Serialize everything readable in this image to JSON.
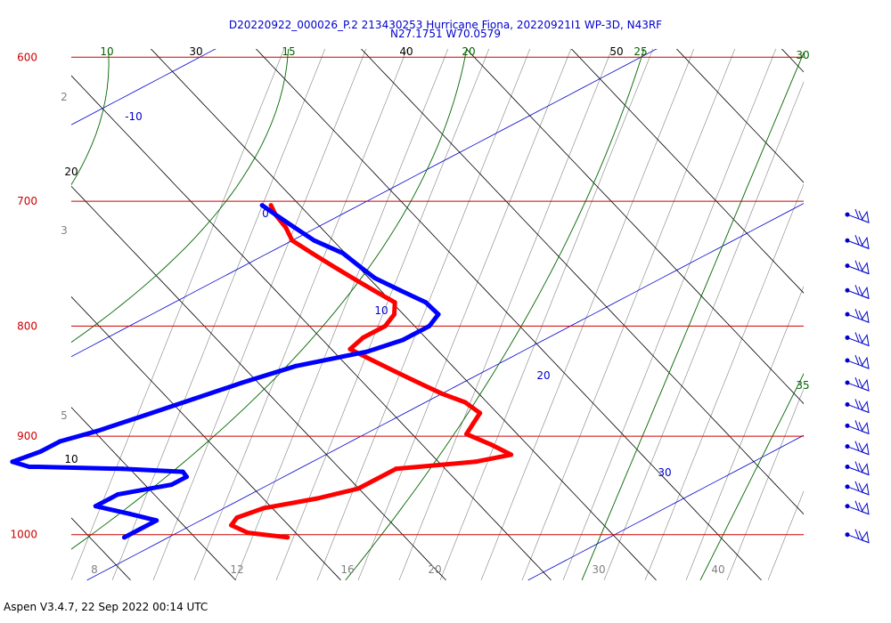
{
  "title_line1": "D20220922_000026_P.2 213430253 Hurricane Fiona, 20220921I1 WP-3D, N43RF",
  "title_line2": "N27.1751 W70.0579",
  "footer": "Aspen V3.4.7, 22 Sep 2022  00:14 UTC",
  "colors": {
    "isobar": "#cc0000",
    "isotherm": "#0000cc",
    "dry_adiabat": "#000000",
    "moist_adiabat": "#006600",
    "mixing_ratio": "#808080",
    "temperature": "#ff0000",
    "dewpoint": "#0000ff",
    "wind": "#0000cc"
  },
  "chart_data": {
    "type": "skew-t log-p",
    "pressure_range_hPa": [
      1050,
      600
    ],
    "isobars_hPa": [
      600,
      700,
      800,
      900,
      1000
    ],
    "isobar_labels": [
      "600",
      "700",
      "800",
      "900",
      "1000"
    ],
    "isotherms_C": [
      -10,
      0,
      10,
      20,
      30
    ],
    "isotherm_labels": [
      "-10",
      "0",
      "10",
      "20",
      "30"
    ],
    "dry_adiabat_labels": [
      "30",
      "40",
      "50",
      "20",
      "10"
    ],
    "moist_adiabat_labels": [
      "10",
      "15",
      "20",
      "25",
      "30",
      "35"
    ],
    "mixing_ratio_labels": [
      "2",
      "3",
      "5",
      "8",
      "12",
      "16",
      "20",
      "30",
      "40"
    ],
    "series": [
      {
        "name": "temperature",
        "points": [
          [
            1003,
            22.7
          ],
          [
            998,
            21.6
          ],
          [
            990,
            20.9
          ],
          [
            982,
            20.7
          ],
          [
            972,
            20.9
          ],
          [
            962,
            21.7
          ],
          [
            952,
            22.2
          ],
          [
            942,
            22.2
          ],
          [
            932,
            22.2
          ],
          [
            925,
            23.7
          ],
          [
            918,
            24.2
          ],
          [
            908,
            23.3
          ],
          [
            898,
            22.3
          ],
          [
            888,
            22.0
          ],
          [
            878,
            21.7
          ],
          [
            868,
            20.9
          ],
          [
            860,
            20.0
          ],
          [
            850,
            19.0
          ],
          [
            840,
            18.0
          ],
          [
            830,
            17.0
          ],
          [
            820,
            16.0
          ],
          [
            810,
            15.8
          ],
          [
            800,
            15.8
          ],
          [
            790,
            15.5
          ],
          [
            780,
            15.0
          ],
          [
            770,
            14.0
          ],
          [
            760,
            13.0
          ],
          [
            750,
            12.0
          ],
          [
            740,
            11.0
          ],
          [
            730,
            10.0
          ],
          [
            720,
            9.3
          ],
          [
            710,
            8.5
          ],
          [
            703,
            8.0
          ]
        ]
      },
      {
        "name": "dewpoint",
        "points": [
          [
            1003,
            19.0
          ],
          [
            995,
            19.0
          ],
          [
            985,
            19.0
          ],
          [
            978,
            18.1
          ],
          [
            970,
            17.0
          ],
          [
            958,
            17.0
          ],
          [
            948,
            17.8
          ],
          [
            940,
            17.8
          ],
          [
            935,
            17.5
          ],
          [
            932,
            16.0
          ],
          [
            930,
            14.0
          ],
          [
            930,
            13.8
          ],
          [
            925,
            13.2
          ],
          [
            915,
            13.4
          ],
          [
            905,
            13.4
          ],
          [
            895,
            13.8
          ],
          [
            880,
            14.2
          ],
          [
            865,
            14.6
          ],
          [
            850,
            15.0
          ],
          [
            835,
            15.5
          ],
          [
            822,
            16.5
          ],
          [
            812,
            16.8
          ],
          [
            800,
            16.8
          ],
          [
            790,
            16.5
          ],
          [
            780,
            15.7
          ],
          [
            770,
            14.6
          ],
          [
            760,
            13.5
          ],
          [
            750,
            12.6
          ],
          [
            740,
            11.7
          ],
          [
            730,
            10.5
          ],
          [
            720,
            9.5
          ],
          [
            710,
            8.5
          ],
          [
            703,
            7.8
          ]
        ]
      }
    ],
    "wind_barb_levels_hPa": [
      710,
      730,
      750,
      770,
      790,
      810,
      830,
      850,
      870,
      890,
      910,
      930,
      950,
      970,
      1000
    ]
  }
}
